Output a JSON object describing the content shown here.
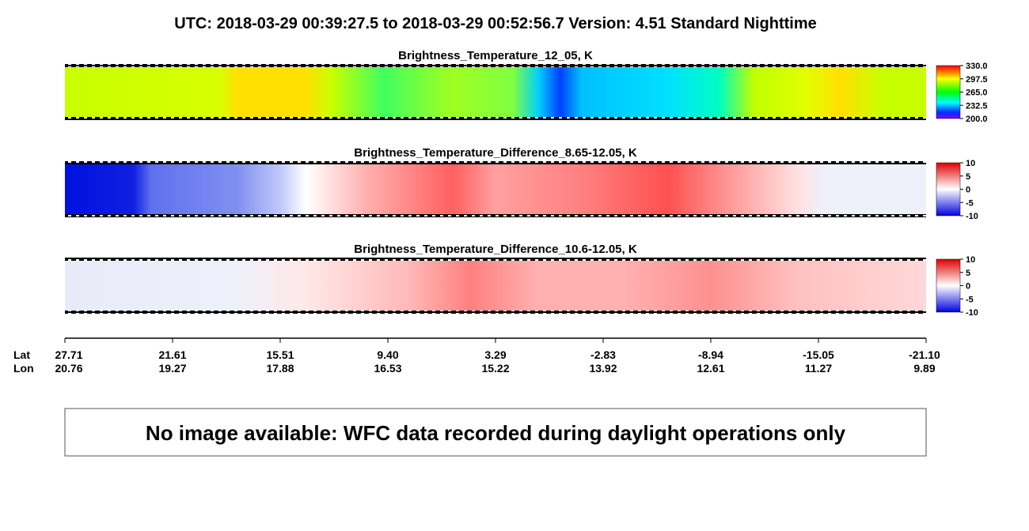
{
  "header": {
    "title": "UTC:  2018-03-29   00:39:27.5  to  2018-03-29   00:52:56.7    Version: 4.51  Standard Nighttime"
  },
  "panels": [
    {
      "title": "Brightness_Temperature_12_05, K",
      "colorbar_ticks": [
        {
          "value": 330,
          "label": "330.0"
        },
        {
          "value": 297.5,
          "label": "297.5"
        },
        {
          "value": 265,
          "label": "265.0"
        },
        {
          "value": 232.5,
          "label": "232.5"
        },
        {
          "value": 200,
          "label": "200.0"
        }
      ]
    },
    {
      "title": "Brightness_Temperature_Difference_8.65-12.05, K",
      "colorbar_ticks": [
        10,
        5,
        0,
        -5,
        -10
      ]
    },
    {
      "title": "Brightness_Temperature_Difference_10.6-12.05, K",
      "colorbar_ticks": [
        10,
        5,
        0,
        -5,
        -10
      ]
    }
  ],
  "axis": {
    "lat_label": "Lat",
    "lon_label": "Lon",
    "ticks": [
      {
        "lat": "27.71",
        "lon": "20.76"
      },
      {
        "lat": "21.61",
        "lon": "19.27"
      },
      {
        "lat": "15.51",
        "lon": "17.88"
      },
      {
        "lat": "9.40",
        "lon": "16.53"
      },
      {
        "lat": "3.29",
        "lon": "15.22"
      },
      {
        "lat": "-2.83",
        "lon": "13.92"
      },
      {
        "lat": "-8.94",
        "lon": "12.61"
      },
      {
        "lat": "-15.05",
        "lon": "11.27"
      },
      {
        "lat": "-21.10",
        "lon": "9.89"
      }
    ]
  },
  "notice": "No image available: WFC data recorded during daylight operations only"
}
